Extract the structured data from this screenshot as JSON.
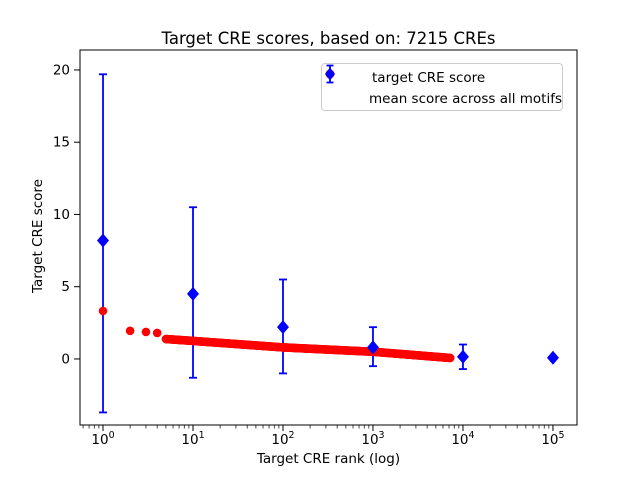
{
  "chart_data": {
    "type": "scatter",
    "title": "Target CRE scores, based on: 7215 CREs",
    "xlabel": "Target CRE rank (log)",
    "ylabel": "Target CRE score",
    "x_scale": "log",
    "xlim": [
      0.555,
      185000
    ],
    "ylim": [
      -4.57,
      21.38
    ],
    "x_tick_exponents": [
      0,
      1,
      2,
      3,
      4,
      5
    ],
    "y_ticks": [
      0,
      5,
      10,
      15,
      20
    ],
    "grid": false,
    "n_points_red_series": 7215,
    "colors": {
      "red": "#ff0000",
      "blue": "#0000ff",
      "axis": "#000000"
    },
    "series": [
      {
        "name": "target CRE score",
        "marker": "circle",
        "color": "#ff0000",
        "head_points": [
          [
            1,
            3.32
          ],
          [
            2,
            1.95
          ],
          [
            3,
            1.87
          ],
          [
            4,
            1.8
          ]
        ],
        "band_anchors": [
          [
            5,
            1.38
          ],
          [
            10,
            1.25
          ],
          [
            100,
            0.8
          ],
          [
            1000,
            0.5
          ],
          [
            7215,
            0.07
          ]
        ],
        "band_render_count": 450
      },
      {
        "name": "mean score across all motifs",
        "marker": "diamond",
        "color": "#0000ff",
        "points": [
          {
            "x": 1,
            "y": 8.2,
            "lo": -3.7,
            "hi": 19.7
          },
          {
            "x": 10,
            "y": 4.5,
            "lo": -1.3,
            "hi": 10.5
          },
          {
            "x": 100,
            "y": 2.2,
            "lo": -1.0,
            "hi": 5.5
          },
          {
            "x": 1000,
            "y": 0.8,
            "lo": -0.5,
            "hi": 2.2
          },
          {
            "x": 10000,
            "y": 0.15,
            "lo": -0.7,
            "hi": 1.0
          },
          {
            "x": 100000,
            "y": 0.08,
            "lo": -0.02,
            "hi": 0.18
          }
        ]
      }
    ],
    "legend": {
      "position": "upper right",
      "entries": [
        {
          "label": "target CRE score",
          "marker": "circle",
          "color": "#ff0000"
        },
        {
          "label": "mean score across all motifs",
          "marker": "diamond-errorbar",
          "color": "#0000ff"
        }
      ]
    }
  }
}
